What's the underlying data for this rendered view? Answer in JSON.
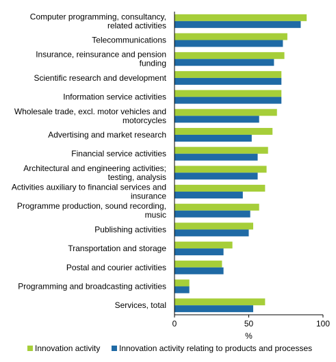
{
  "chart_data": {
    "type": "bar",
    "orientation": "horizontal",
    "categories": [
      [
        "Computer programming, consultancy,",
        "related activities"
      ],
      [
        "Telecommunications"
      ],
      [
        "Insurance, reinsurance and pension",
        "funding"
      ],
      [
        "Scientific research and development"
      ],
      [
        "Information service activities"
      ],
      [
        "Wholesale trade, excl. motor vehicles and",
        "motorcycles"
      ],
      [
        "Advertising and market research"
      ],
      [
        "Financial service activities"
      ],
      [
        "Architectural and engineering activities;",
        "testing, analysis"
      ],
      [
        "Activities auxiliary to financial services and",
        "insurance"
      ],
      [
        "Programme production, sound recording,",
        "music"
      ],
      [
        "Publishing activities"
      ],
      [
        "Transportation and storage"
      ],
      [
        "Postal and courier activities"
      ],
      [
        "Programming and broadcasting activities"
      ],
      [
        "Services, total"
      ]
    ],
    "series": [
      {
        "name": "Innovation activity",
        "color": "#a6ce39",
        "values": [
          89,
          76,
          74,
          72,
          72,
          69,
          66,
          63,
          62,
          61,
          57,
          53,
          39,
          32,
          10,
          61
        ]
      },
      {
        "name": "Innovation activity relating to products and processes",
        "color": "#1f6aa5",
        "values": [
          85,
          73,
          67,
          72,
          72,
          57,
          52,
          56,
          56,
          46,
          51,
          50,
          33,
          33,
          10,
          53
        ]
      }
    ],
    "xlabel": "%",
    "xlim": [
      0,
      100
    ],
    "xticks": [
      "0",
      "50",
      "100"
    ],
    "legend_position": "bottom",
    "grid": false
  }
}
